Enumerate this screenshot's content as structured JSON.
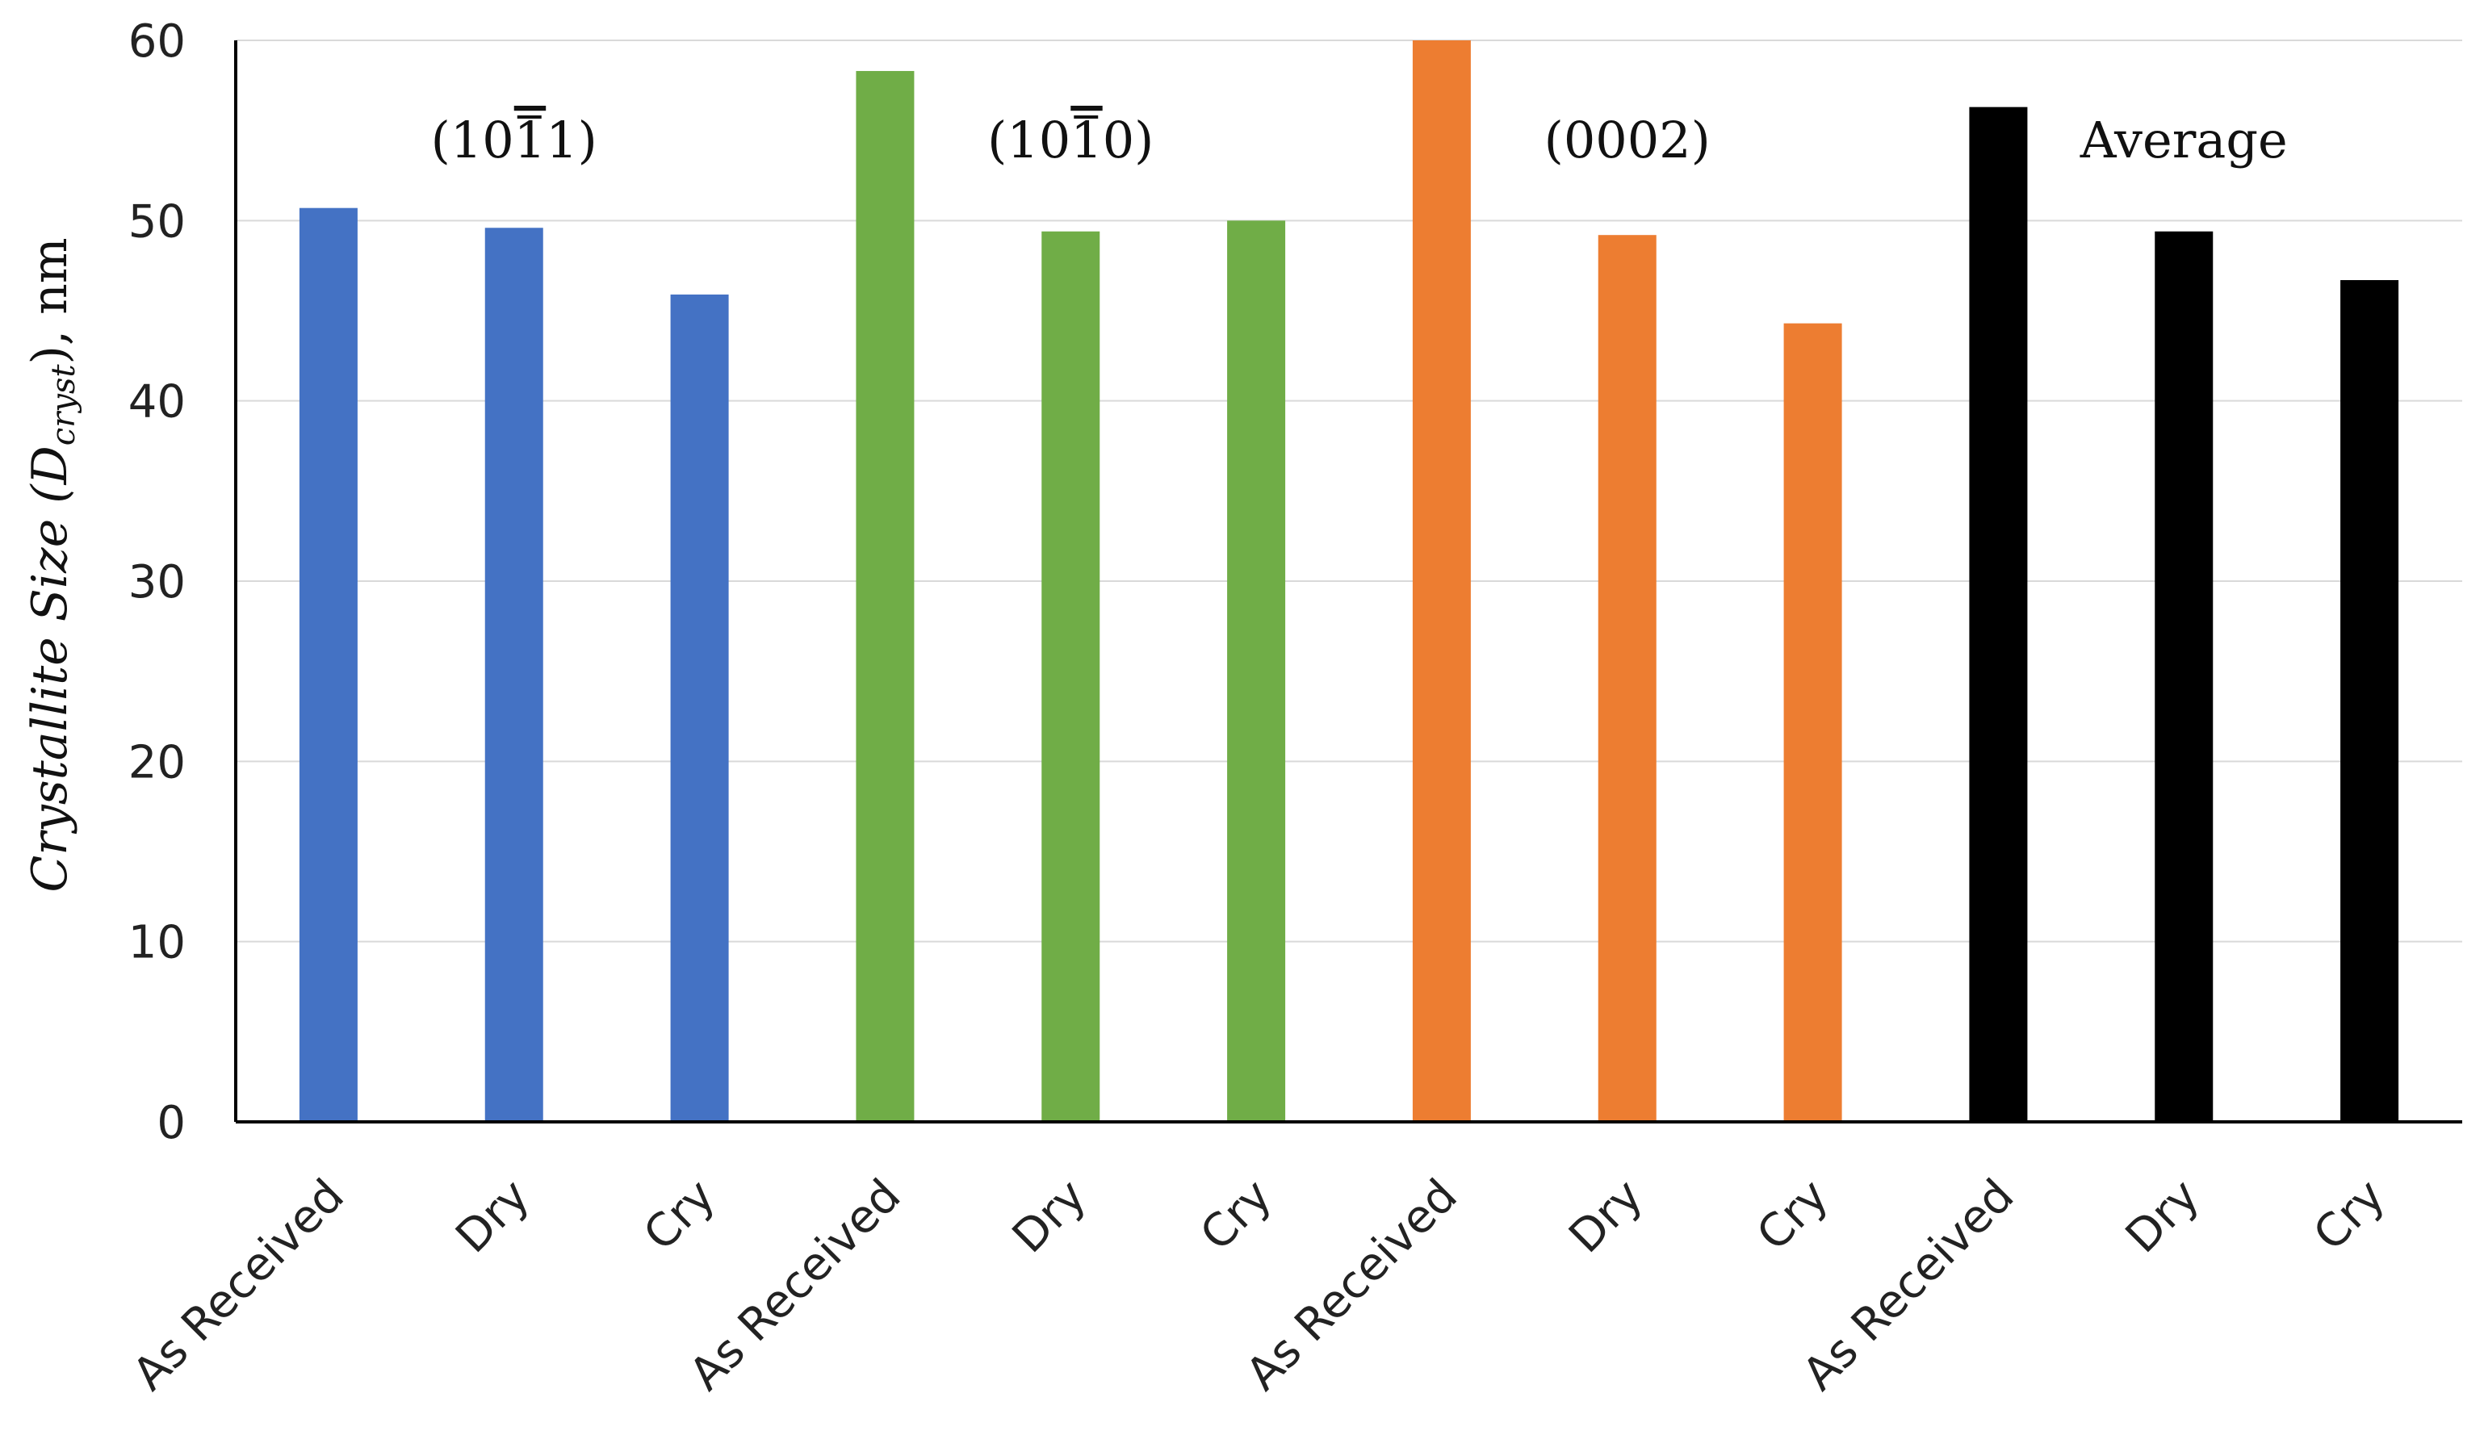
{
  "chart_data": {
    "type": "bar",
    "ylabel": {
      "main": "Crystallite Size (D",
      "subscript": "cryst",
      "suffix": "), nm"
    },
    "xlabel": "",
    "ylim": [
      0,
      60
    ],
    "yticks": [
      "0",
      "10",
      "20",
      "30",
      "40",
      "50",
      "60"
    ],
    "grid": true,
    "groups": [
      {
        "label": "(1011)",
        "label_parts": [
          "(10",
          "1",
          "1)"
        ],
        "color": "#4472C4",
        "categories": [
          "As Received",
          "Dry",
          "Cry"
        ],
        "values": [
          50.7,
          49.6,
          45.9
        ]
      },
      {
        "label": "(1010)",
        "label_parts": [
          "(10",
          "1",
          "0)"
        ],
        "color": "#70AD47",
        "categories": [
          "As Received",
          "Dry",
          "Cry"
        ],
        "values": [
          58.3,
          49.4,
          50.0
        ]
      },
      {
        "label": "(0002)",
        "label_parts": [
          "(0002)",
          "",
          ""
        ],
        "color": "#ED7D31",
        "categories": [
          "As Received",
          "Dry",
          "Cry"
        ],
        "values": [
          60.0,
          49.2,
          44.3
        ]
      },
      {
        "label": "Average",
        "label_parts": [
          "Average",
          "",
          ""
        ],
        "color": "#000000",
        "categories": [
          "As Received",
          "Dry",
          "Cry"
        ],
        "values": [
          56.3,
          49.4,
          46.7
        ]
      }
    ]
  }
}
